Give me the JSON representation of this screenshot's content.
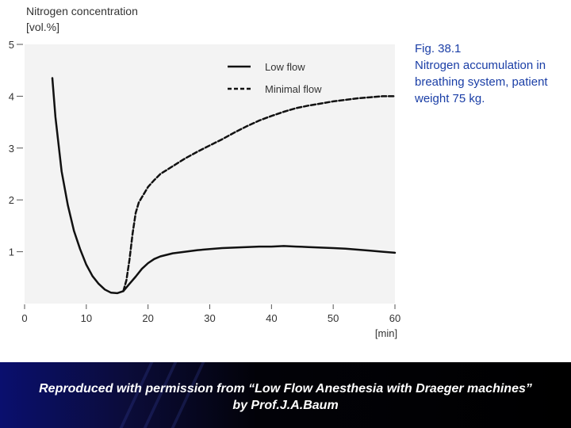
{
  "chart_data": {
    "type": "line",
    "ylabel_line1": "Nitrogen concentration",
    "ylabel_line2": "[vol.%]",
    "xlabel": "[min]",
    "xlim": [
      0,
      60
    ],
    "ylim": [
      0,
      5
    ],
    "x_ticks": [
      "0",
      "10",
      "20",
      "30",
      "40",
      "50",
      "60"
    ],
    "y_ticks": [
      "1",
      "2",
      "3",
      "4",
      "5"
    ],
    "grid": false,
    "legend_position": "top-right",
    "series": [
      {
        "name": "Low flow",
        "style": "solid",
        "x": [
          4.5,
          5,
          6,
          7,
          8,
          9,
          10,
          11,
          12,
          13,
          14,
          15,
          16,
          17,
          18,
          19,
          20,
          21,
          22,
          24,
          26,
          28,
          30,
          32,
          34,
          36,
          38,
          40,
          42,
          44,
          46,
          48,
          50,
          52,
          54,
          56,
          58,
          60
        ],
        "y": [
          4.35,
          3.6,
          2.55,
          1.9,
          1.4,
          1.05,
          0.75,
          0.53,
          0.38,
          0.27,
          0.21,
          0.2,
          0.24,
          0.38,
          0.52,
          0.67,
          0.78,
          0.86,
          0.91,
          0.97,
          1.0,
          1.03,
          1.05,
          1.07,
          1.08,
          1.09,
          1.1,
          1.1,
          1.11,
          1.1,
          1.09,
          1.08,
          1.07,
          1.06,
          1.04,
          1.02,
          1.0,
          0.98
        ]
      },
      {
        "name": "Minimal flow",
        "style": "dashed",
        "x": [
          16,
          16.5,
          17,
          17.5,
          18,
          18.5,
          19,
          19.5,
          20,
          21,
          22,
          24,
          26,
          28,
          30,
          32,
          34,
          36,
          38,
          40,
          42,
          44,
          46,
          48,
          50,
          52,
          54,
          56,
          58,
          60
        ],
        "y": [
          0.24,
          0.45,
          0.85,
          1.35,
          1.75,
          1.95,
          2.05,
          2.15,
          2.25,
          2.38,
          2.5,
          2.65,
          2.8,
          2.93,
          3.05,
          3.17,
          3.3,
          3.42,
          3.53,
          3.62,
          3.7,
          3.77,
          3.82,
          3.86,
          3.9,
          3.93,
          3.96,
          3.98,
          4.0,
          4.0
        ]
      }
    ]
  },
  "caption": {
    "line1": "Fig. 38.1",
    "line2": "Nitrogen accumulation in",
    "line3": "breathing system, patient",
    "line4": "weight 75 kg."
  },
  "footer": {
    "line1": "Reproduced with permission from “Low Flow Anesthesia with Draeger machines”",
    "line2": "by Prof.J.A.Baum"
  },
  "colors": {
    "plot_background": "#f3f3f3",
    "line": "#111111",
    "caption": "#1a3ea6",
    "footer_text": "#ffffff"
  }
}
